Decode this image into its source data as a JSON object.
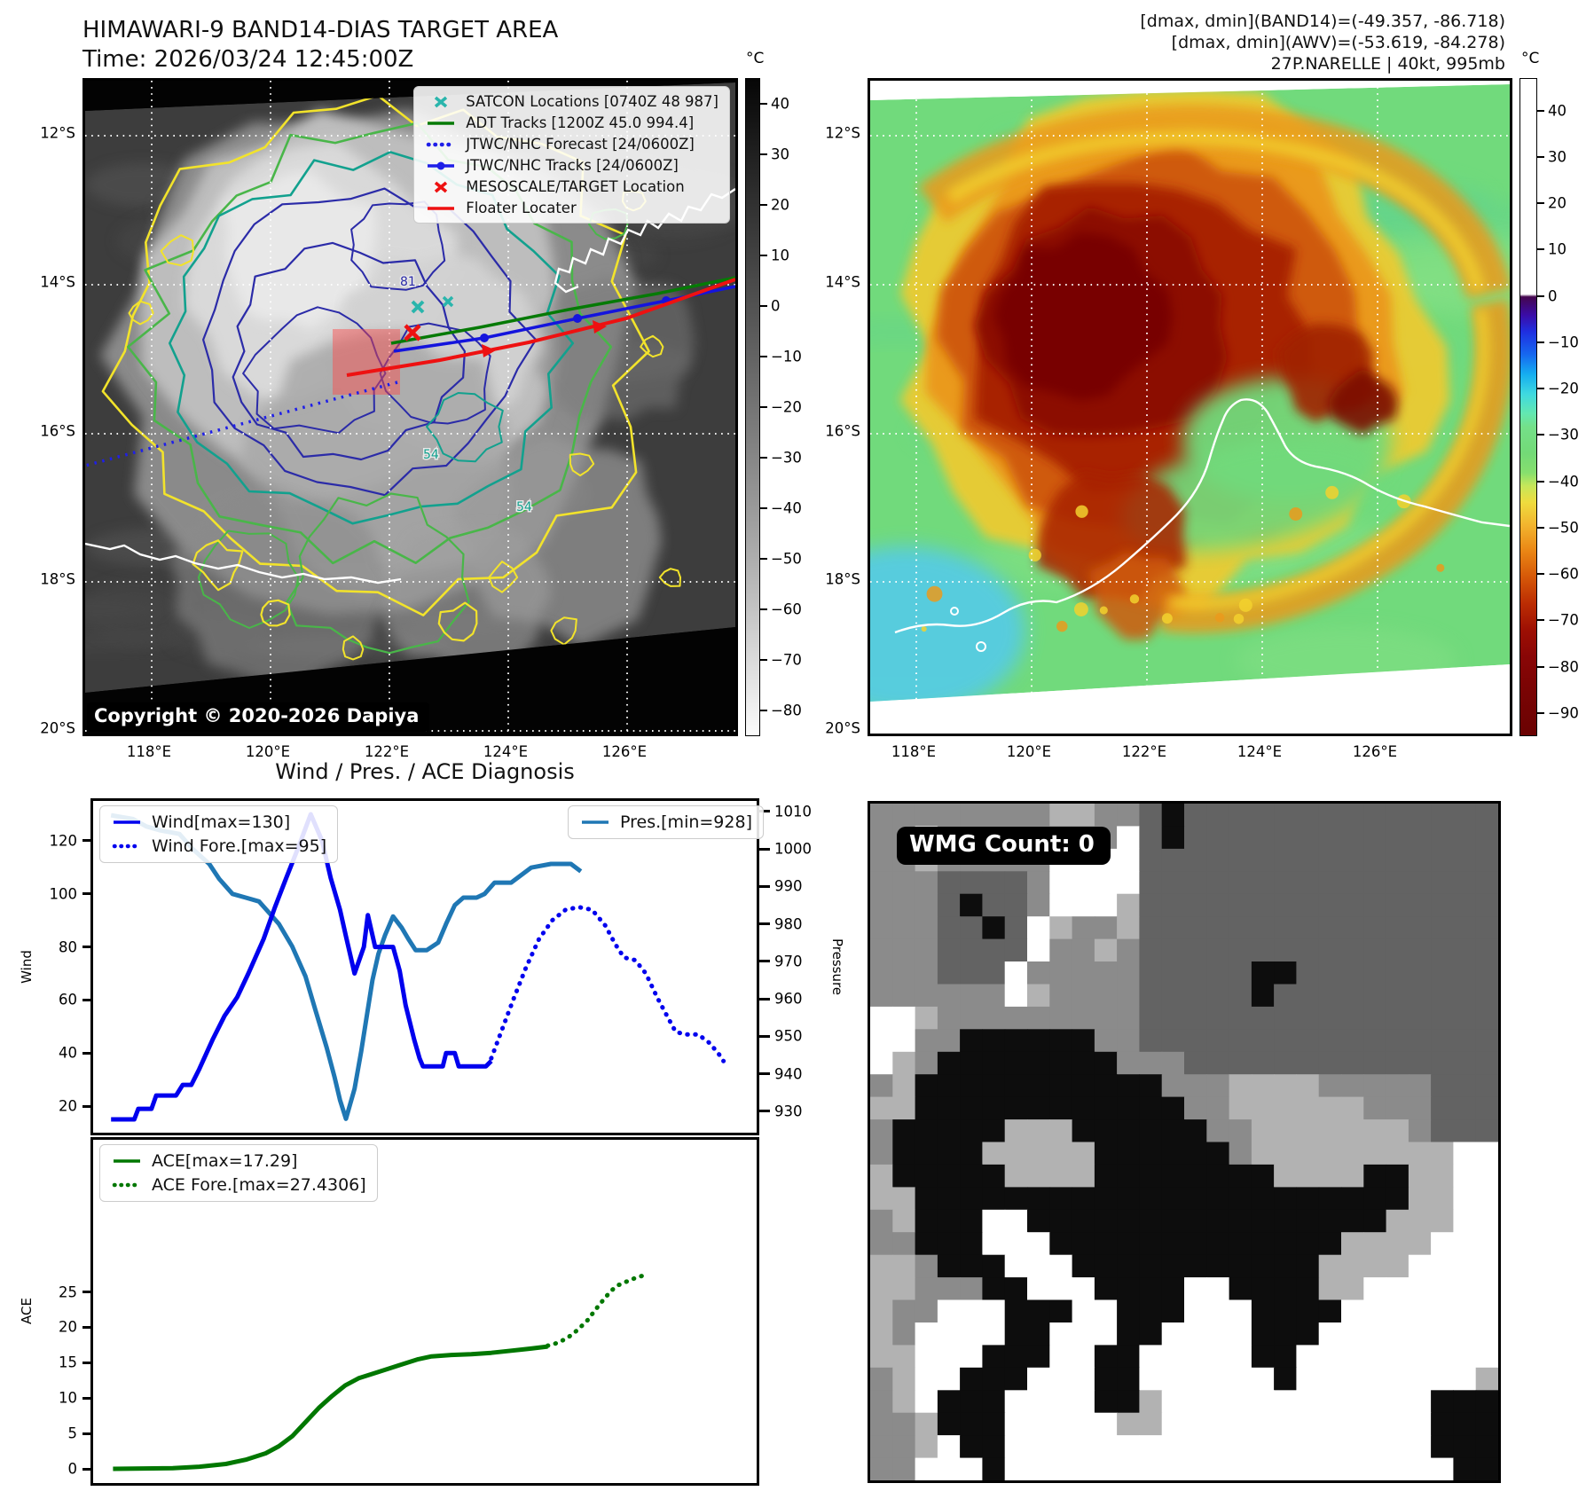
{
  "header_left": {
    "title": "HIMAWARI-9 BAND14-DIAS TARGET AREA",
    "time": "Time: 2026/03/24 12:45:00Z"
  },
  "header_right": {
    "line1": "[dmax, dmin](BAND14)=(-49.357, -86.718)",
    "line2": "[dmax, dmin](AWV)=(-53.619, -84.278)",
    "line3": "27P.NARELLE | 40kt, 995mb"
  },
  "maps": {
    "left": {
      "name": "BAND14 infrared satellite map",
      "copyright": "Copyright © 2020-2026 Dapiya",
      "lat_ticks": [
        "12°S",
        "14°S",
        "16°S",
        "18°S",
        "20°S"
      ],
      "lon_ticks": [
        "118°E",
        "120°E",
        "122°E",
        "124°E",
        "126°E"
      ],
      "colorbar": {
        "unit": "°C",
        "ticks": [
          40,
          30,
          20,
          10,
          0,
          -10,
          -20,
          -30,
          -40,
          -50,
          -60,
          -70,
          -80
        ]
      },
      "contour_labels": [
        "81",
        "54",
        "54"
      ],
      "legend": [
        {
          "label": "SATCON Locations [0740Z 48 987]",
          "marker": "x",
          "color": "#2ab5ac"
        },
        {
          "label": "ADT Tracks [1200Z 45.0 994.4]",
          "marker": "line",
          "color": "#067a06"
        },
        {
          "label": "JTWC/NHC Forecast [24/0600Z]",
          "marker": "dotted",
          "color": "#1f1fe8"
        },
        {
          "label": "JTWC/NHC Tracks [24/0600Z]",
          "marker": "linedot",
          "color": "#1f1fe8"
        },
        {
          "label": "MESOSCALE/TARGET Location",
          "marker": "x",
          "color": "#ee1111"
        },
        {
          "label": "Floater Locater",
          "marker": "line",
          "color": "#ee1111"
        }
      ]
    },
    "right": {
      "name": "AWV color-enhanced satellite map",
      "lat_ticks": [
        "12°S",
        "14°S",
        "16°S",
        "18°S",
        "20°S"
      ],
      "lon_ticks": [
        "118°E",
        "120°E",
        "122°E",
        "124°E",
        "126°E"
      ],
      "colorbar": {
        "unit": "°C",
        "ticks": [
          40,
          30,
          20,
          10,
          0,
          -10,
          -20,
          -30,
          -40,
          -50,
          -60,
          -70,
          -80,
          -90
        ]
      }
    }
  },
  "chart_data": [
    {
      "type": "line",
      "title": "Wind / Pres. / ACE Diagnosis",
      "ylabel_left": "Wind",
      "ylabel_right": "Pressure",
      "ylim_left": [
        10,
        135
      ],
      "yticks_left": [
        20,
        40,
        60,
        80,
        100,
        120
      ],
      "ylim_right": [
        924.3,
        1012.8
      ],
      "yticks_right": [
        930,
        940,
        950,
        960,
        970,
        980,
        990,
        1000,
        1010
      ],
      "xlim": [
        0,
        1
      ],
      "grid": false,
      "series": [
        {
          "name": "Wind[max=130]",
          "color": "#0000ee",
          "style": "solid",
          "axis": "left",
          "points": [
            [
              0.027,
              15
            ],
            [
              0.062,
              15
            ],
            [
              0.068,
              19
            ],
            [
              0.088,
              19
            ],
            [
              0.095,
              24
            ],
            [
              0.125,
              24
            ],
            [
              0.135,
              28
            ],
            [
              0.148,
              28
            ],
            [
              0.16,
              34
            ],
            [
              0.18,
              45
            ],
            [
              0.198,
              54
            ],
            [
              0.217,
              61
            ],
            [
              0.234,
              70
            ],
            [
              0.257,
              83
            ],
            [
              0.274,
              95
            ],
            [
              0.291,
              106
            ],
            [
              0.31,
              118
            ],
            [
              0.328,
              130
            ],
            [
              0.345,
              120
            ],
            [
              0.358,
              106
            ],
            [
              0.372,
              94
            ],
            [
              0.381,
              84
            ],
            [
              0.394,
              70
            ],
            [
              0.408,
              80
            ],
            [
              0.414,
              92
            ],
            [
              0.425,
              80
            ],
            [
              0.452,
              80
            ],
            [
              0.462,
              71
            ],
            [
              0.471,
              58
            ],
            [
              0.484,
              45
            ],
            [
              0.492,
              38
            ],
            [
              0.497,
              35
            ],
            [
              0.527,
              35
            ],
            [
              0.532,
              40
            ],
            [
              0.545,
              40
            ],
            [
              0.551,
              35
            ],
            [
              0.592,
              35
            ],
            [
              0.6,
              37
            ]
          ]
        },
        {
          "name": "Wind Fore.[max=95]",
          "color": "#0000ee",
          "style": "dotted",
          "axis": "left",
          "points": [
            [
              0.6,
              38
            ],
            [
              0.615,
              48
            ],
            [
              0.633,
              60
            ],
            [
              0.652,
              72
            ],
            [
              0.672,
              83
            ],
            [
              0.692,
              90
            ],
            [
              0.712,
              94
            ],
            [
              0.732,
              95
            ],
            [
              0.752,
              94
            ],
            [
              0.772,
              88
            ],
            [
              0.787,
              81
            ],
            [
              0.8,
              76
            ],
            [
              0.817,
              75
            ],
            [
              0.833,
              70
            ],
            [
              0.85,
              61
            ],
            [
              0.865,
              54
            ],
            [
              0.878,
              48
            ],
            [
              0.893,
              47
            ],
            [
              0.912,
              47
            ],
            [
              0.928,
              44
            ],
            [
              0.942,
              40
            ],
            [
              0.95,
              37
            ]
          ]
        },
        {
          "name": "Pres.[min=928]",
          "color": "#1f77b4",
          "style": "solid",
          "axis": "right",
          "points": [
            [
              0.027,
              1009
            ],
            [
              0.06,
              1008
            ],
            [
              0.08,
              1006
            ],
            [
              0.1,
              1005
            ],
            [
              0.13,
              1004
            ],
            [
              0.15,
              1000
            ],
            [
              0.175,
              996
            ],
            [
              0.19,
              992
            ],
            [
              0.21,
              988
            ],
            [
              0.23,
              987
            ],
            [
              0.25,
              986
            ],
            [
              0.265,
              983
            ],
            [
              0.28,
              980
            ],
            [
              0.3,
              974
            ],
            [
              0.32,
              966
            ],
            [
              0.335,
              957
            ],
            [
              0.352,
              947
            ],
            [
              0.364,
              939
            ],
            [
              0.372,
              933
            ],
            [
              0.381,
              928
            ],
            [
              0.394,
              936
            ],
            [
              0.404,
              946
            ],
            [
              0.412,
              955
            ],
            [
              0.421,
              965
            ],
            [
              0.43,
              972
            ],
            [
              0.44,
              977
            ],
            [
              0.452,
              982
            ],
            [
              0.465,
              979
            ],
            [
              0.475,
              976
            ],
            [
              0.486,
              973
            ],
            [
              0.503,
              973
            ],
            [
              0.52,
              975
            ],
            [
              0.532,
              980
            ],
            [
              0.545,
              985
            ],
            [
              0.558,
              987
            ],
            [
              0.578,
              987
            ],
            [
              0.59,
              988
            ],
            [
              0.605,
              991
            ],
            [
              0.63,
              991
            ],
            [
              0.66,
              995
            ],
            [
              0.69,
              996
            ],
            [
              0.72,
              996
            ],
            [
              0.735,
              994
            ]
          ]
        }
      ]
    },
    {
      "type": "line",
      "ylabel": "ACE",
      "ylim": [
        -2,
        46.5
      ],
      "yticks": [
        0,
        5,
        10,
        15,
        20,
        25
      ],
      "xlim": [
        0,
        1
      ],
      "series": [
        {
          "name": "ACE[max=17.29]",
          "color": "#007700",
          "style": "solid",
          "axis": "left",
          "points": [
            [
              0.03,
              0
            ],
            [
              0.12,
              0.1
            ],
            [
              0.16,
              0.3
            ],
            [
              0.2,
              0.7
            ],
            [
              0.23,
              1.3
            ],
            [
              0.26,
              2.2
            ],
            [
              0.28,
              3.2
            ],
            [
              0.3,
              4.6
            ],
            [
              0.32,
              6.6
            ],
            [
              0.34,
              8.6
            ],
            [
              0.36,
              10.3
            ],
            [
              0.38,
              11.8
            ],
            [
              0.4,
              12.8
            ],
            [
              0.43,
              13.7
            ],
            [
              0.46,
              14.6
            ],
            [
              0.49,
              15.5
            ],
            [
              0.51,
              15.9
            ],
            [
              0.54,
              16.1
            ],
            [
              0.57,
              16.2
            ],
            [
              0.6,
              16.4
            ],
            [
              0.63,
              16.7
            ],
            [
              0.66,
              17.0
            ],
            [
              0.685,
              17.29
            ]
          ]
        },
        {
          "name": "ACE Fore.[max=27.4306]",
          "color": "#007700",
          "style": "dotted",
          "axis": "left",
          "points": [
            [
              0.685,
              17.4
            ],
            [
              0.7,
              17.8
            ],
            [
              0.715,
              18.5
            ],
            [
              0.73,
              19.6
            ],
            [
              0.745,
              21.0
            ],
            [
              0.758,
              22.6
            ],
            [
              0.77,
              24.0
            ],
            [
              0.78,
              25.1
            ],
            [
              0.79,
              25.9
            ],
            [
              0.8,
              26.3
            ],
            [
              0.812,
              26.8
            ],
            [
              0.822,
              27.1
            ],
            [
              0.832,
              27.43
            ]
          ]
        }
      ]
    }
  ],
  "wmg": {
    "label": "WMG Count: 0",
    "palette": {
      "W": "#ffffff",
      "l": "#b2b2b2",
      "g": "#8b8b8b",
      "d": "#636363",
      "k": "#0d0d0d"
    },
    "grid": [
      "ggggggggllggdkdddddddddddddd",
      "ggWggggggggWdkdddddddddddddd",
      "gglgggggWWWWdddddddddddddddd",
      "gggddddgWWWWdddddddddddddddd",
      "gggdkddgWWWldddddddddddddddd",
      "gggddkdWlggldddddddddddddddd",
      "gggddddWgglgdddddddddddddddd",
      "gggdddWgggggdddddkkddddddddd",
      "ggggggWlggggdddddkdddddddddd",
      "WWlgggggggggdddddddddddddddd",
      "WWggkkkkkkggdddddddddddddddd",
      "Wlgkkkkkkkkgggdddddddddddddd",
      "glkkkkkkkkkkkgggllllggggگddd",
      "llkkkkkkkkkkkkggllllllgggddd",
      "gkkkkklllkkkkkkgglllllllgddd",
      "gkkkklllllkkkkkkglllllllllWW",
      "lkkkkkllllkkkkkkkkllllkkllWW",
      "llkkkkkkkkkkkkkkkkkkkkkkllWW",
      "glkkkWWkkkkkkkkkkkkkkkklllWW",
      "ggkkkWWWkkkkkkkkkkkkkllllWWW",
      "llgkkkWWWkkkkkkkkkkkllllWWWW",
      "llgggkkWWWkkkkWWkkkkllWWWWWW",
      "lggWWWkkkWWkkkWWWkkkkWWWWWWW",
      "lgWWWWkkWWWkkWWWWkkkWWWWWWWW",
      "llWWWkkkWWkkWWWWWkkWWWWWWWWW",
      "glWWkkkWWWkkWWWWWWkWWWWWWWWl",
      "glWkkkWWWWkklWWWWWWWWWWWWkkk",
      "gglkkkWWWWWllWWWWWWWWWWWWkkk",
      "gglWkkWWWWWWWWWWWWWWWWWWWkkk",
      "ggWWWkWWWWWWWWWWWWWWWWWWWWkk"
    ]
  }
}
